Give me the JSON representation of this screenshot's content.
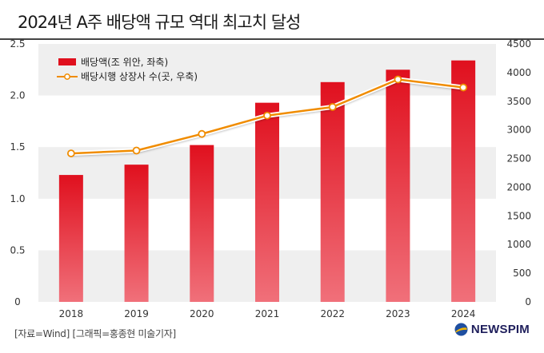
{
  "title": "2024년 A주 배당액 규모 역대 최고치 달성",
  "source": "[자료=Wind] [그래픽=홍종현 미술기자]",
  "brand": "NEWSPIM",
  "colors": {
    "bar_top": "#e0101e",
    "bar_bottom": "#f0707a",
    "line": "#f08c00",
    "band": "#efefef",
    "brand": "#1f1f5c"
  },
  "chart_data": {
    "type": "bar+line",
    "categories": [
      "2018",
      "2019",
      "2020",
      "2021",
      "2022",
      "2023",
      "2024"
    ],
    "series": [
      {
        "name": "배당액(조 위안, 좌축)",
        "type": "bar",
        "axis": "left",
        "values": [
          1.23,
          1.33,
          1.52,
          1.93,
          2.13,
          2.25,
          2.34
        ]
      },
      {
        "name": "배당시행 상장사 수(곳, 우축)",
        "type": "line",
        "axis": "right",
        "values": [
          2590,
          2640,
          2930,
          3250,
          3400,
          3880,
          3740
        ]
      }
    ],
    "y_left": {
      "min": 0,
      "max": 2.5,
      "ticks": [
        "0",
        "0.5",
        "1.0",
        "1.5",
        "2.0",
        "2.5"
      ]
    },
    "y_right": {
      "min": 0,
      "max": 4500,
      "ticks": [
        "0",
        "500",
        "1000",
        "1500",
        "2000",
        "2500",
        "3000",
        "3500",
        "4000",
        "4500"
      ]
    },
    "grid": "alternating horizontal bands",
    "legend_position": "top-left"
  }
}
